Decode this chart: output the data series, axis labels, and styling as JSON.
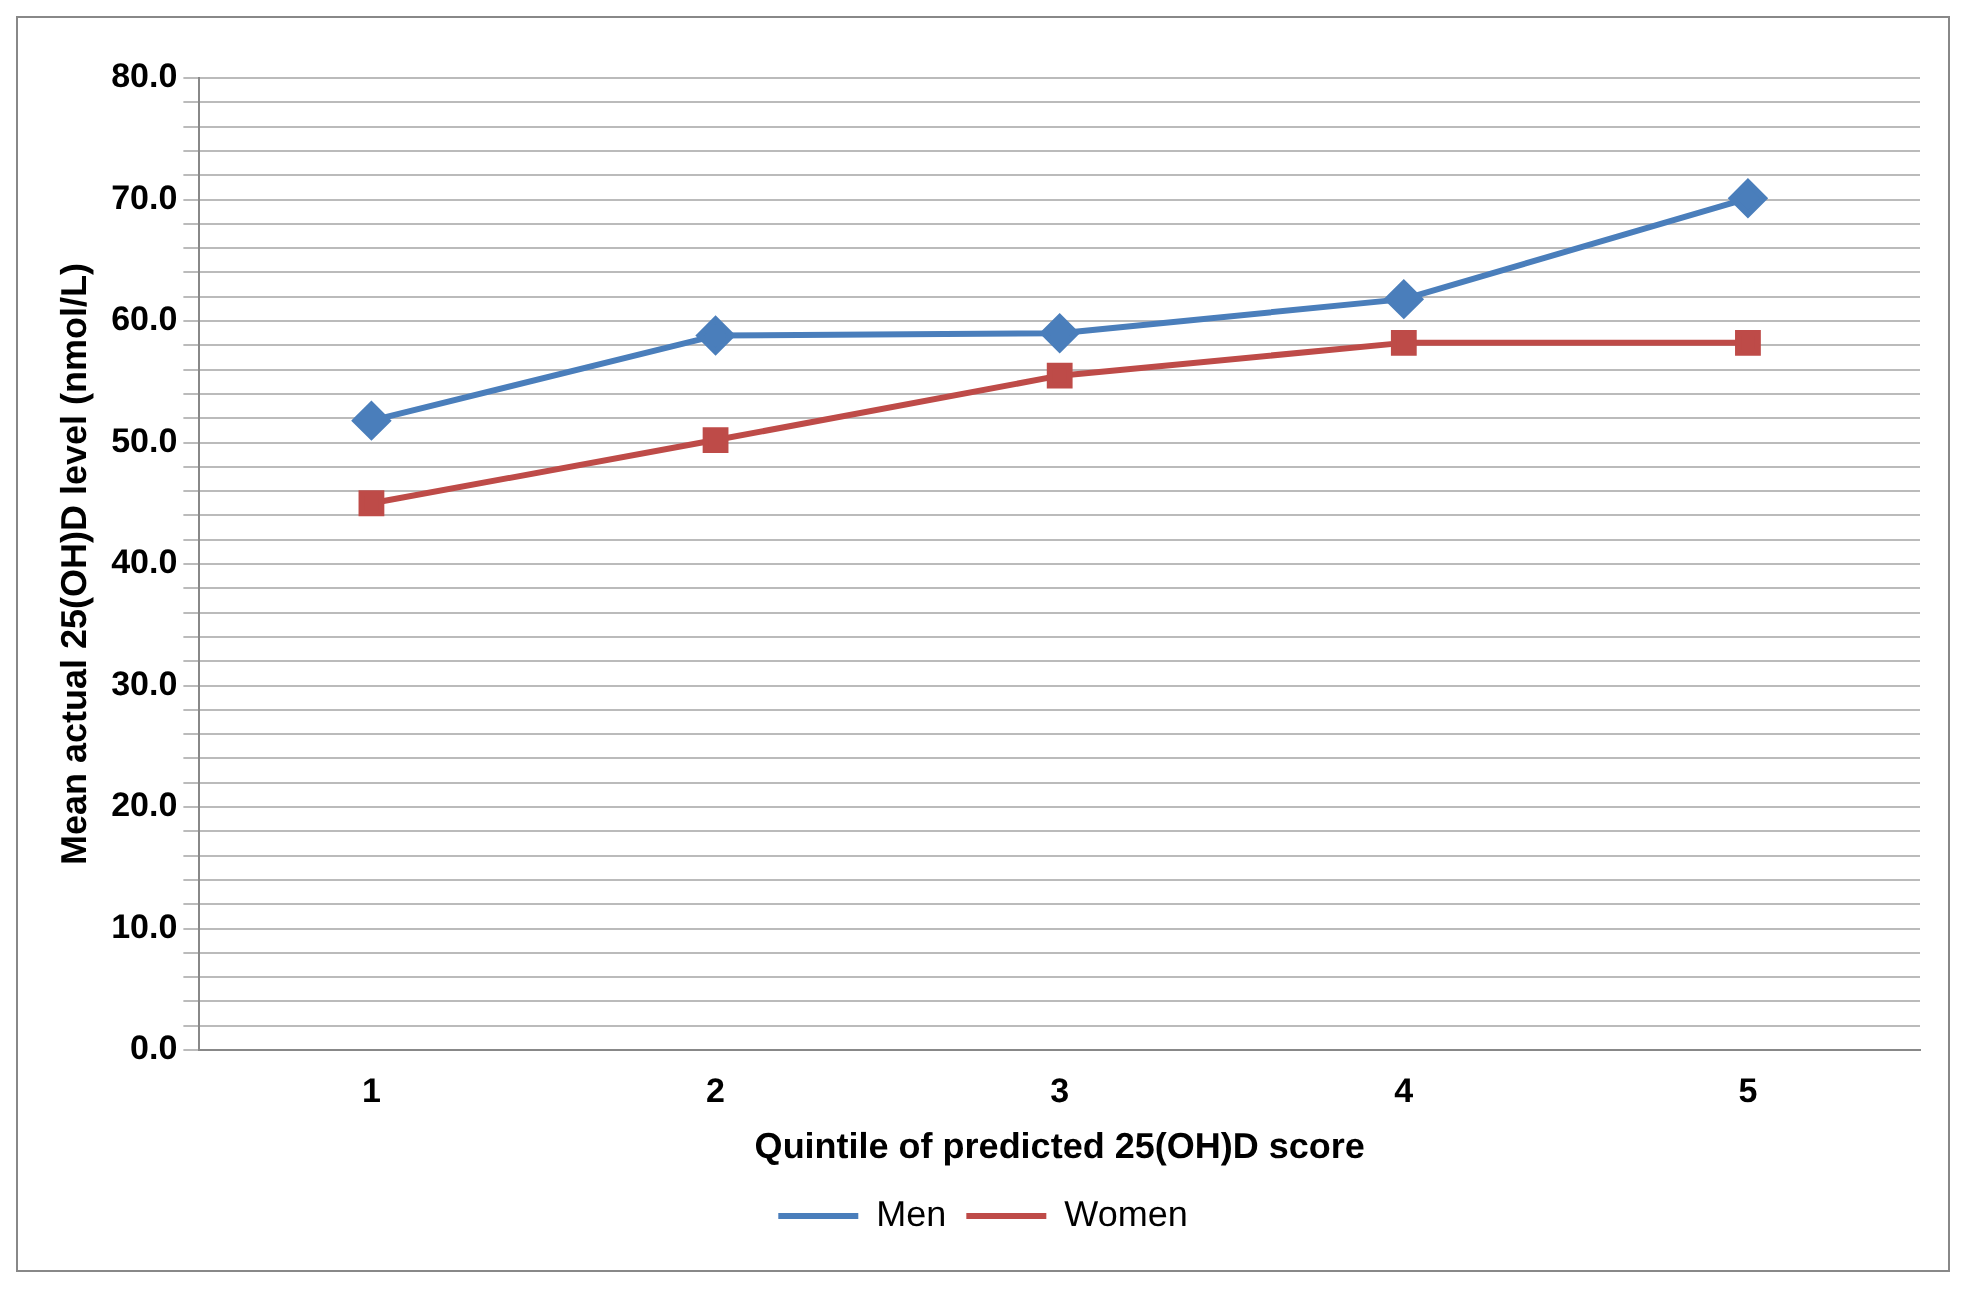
{
  "chart_data": {
    "type": "line",
    "xlabel": "Quintile of predicted 25(OH)D score",
    "ylabel": "Mean actual 25(OH)D level (nmol/L)",
    "categories": [
      "1",
      "2",
      "3",
      "4",
      "5"
    ],
    "series": [
      {
        "name": "Men",
        "color": "#4a7ebb",
        "marker": "diamond",
        "values": [
          51.8,
          58.8,
          59.0,
          61.8,
          70.1
        ]
      },
      {
        "name": "Women",
        "color": "#be4b48",
        "marker": "square",
        "values": [
          45.0,
          50.2,
          55.5,
          58.2,
          58.2
        ]
      }
    ],
    "ylim": [
      0,
      80
    ],
    "yticks": [
      {
        "value": 0,
        "label": "0.0"
      },
      {
        "value": 2,
        "label": null
      },
      {
        "value": 4,
        "label": null
      },
      {
        "value": 6,
        "label": null
      },
      {
        "value": 8,
        "label": null
      },
      {
        "value": 10,
        "label": "10.0"
      },
      {
        "value": 12,
        "label": null
      },
      {
        "value": 14,
        "label": null
      },
      {
        "value": 16,
        "label": null
      },
      {
        "value": 18,
        "label": null
      },
      {
        "value": 20,
        "label": "20.0"
      },
      {
        "value": 22,
        "label": null
      },
      {
        "value": 24,
        "label": null
      },
      {
        "value": 26,
        "label": null
      },
      {
        "value": 28,
        "label": null
      },
      {
        "value": 30,
        "label": "30.0"
      },
      {
        "value": 32,
        "label": null
      },
      {
        "value": 34,
        "label": null
      },
      {
        "value": 36,
        "label": null
      },
      {
        "value": 38,
        "label": null
      },
      {
        "value": 40,
        "label": "40.0"
      },
      {
        "value": 42,
        "label": null
      },
      {
        "value": 44,
        "label": null
      },
      {
        "value": 46,
        "label": null
      },
      {
        "value": 48,
        "label": null
      },
      {
        "value": 50,
        "label": "50.0"
      },
      {
        "value": 52,
        "label": null
      },
      {
        "value": 54,
        "label": null
      },
      {
        "value": 56,
        "label": null
      },
      {
        "value": 58,
        "label": null
      },
      {
        "value": 60,
        "label": "60.0"
      },
      {
        "value": 62,
        "label": null
      },
      {
        "value": 64,
        "label": null
      },
      {
        "value": 66,
        "label": null
      },
      {
        "value": 68,
        "label": null
      },
      {
        "value": 70,
        "label": "70.0"
      },
      {
        "value": 72,
        "label": null
      },
      {
        "value": 74,
        "label": null
      },
      {
        "value": 76,
        "label": null
      },
      {
        "value": 78,
        "label": null
      },
      {
        "value": 80,
        "label": "80.0"
      }
    ],
    "grid": "y",
    "legend": "bottom",
    "line_style": "solid"
  }
}
